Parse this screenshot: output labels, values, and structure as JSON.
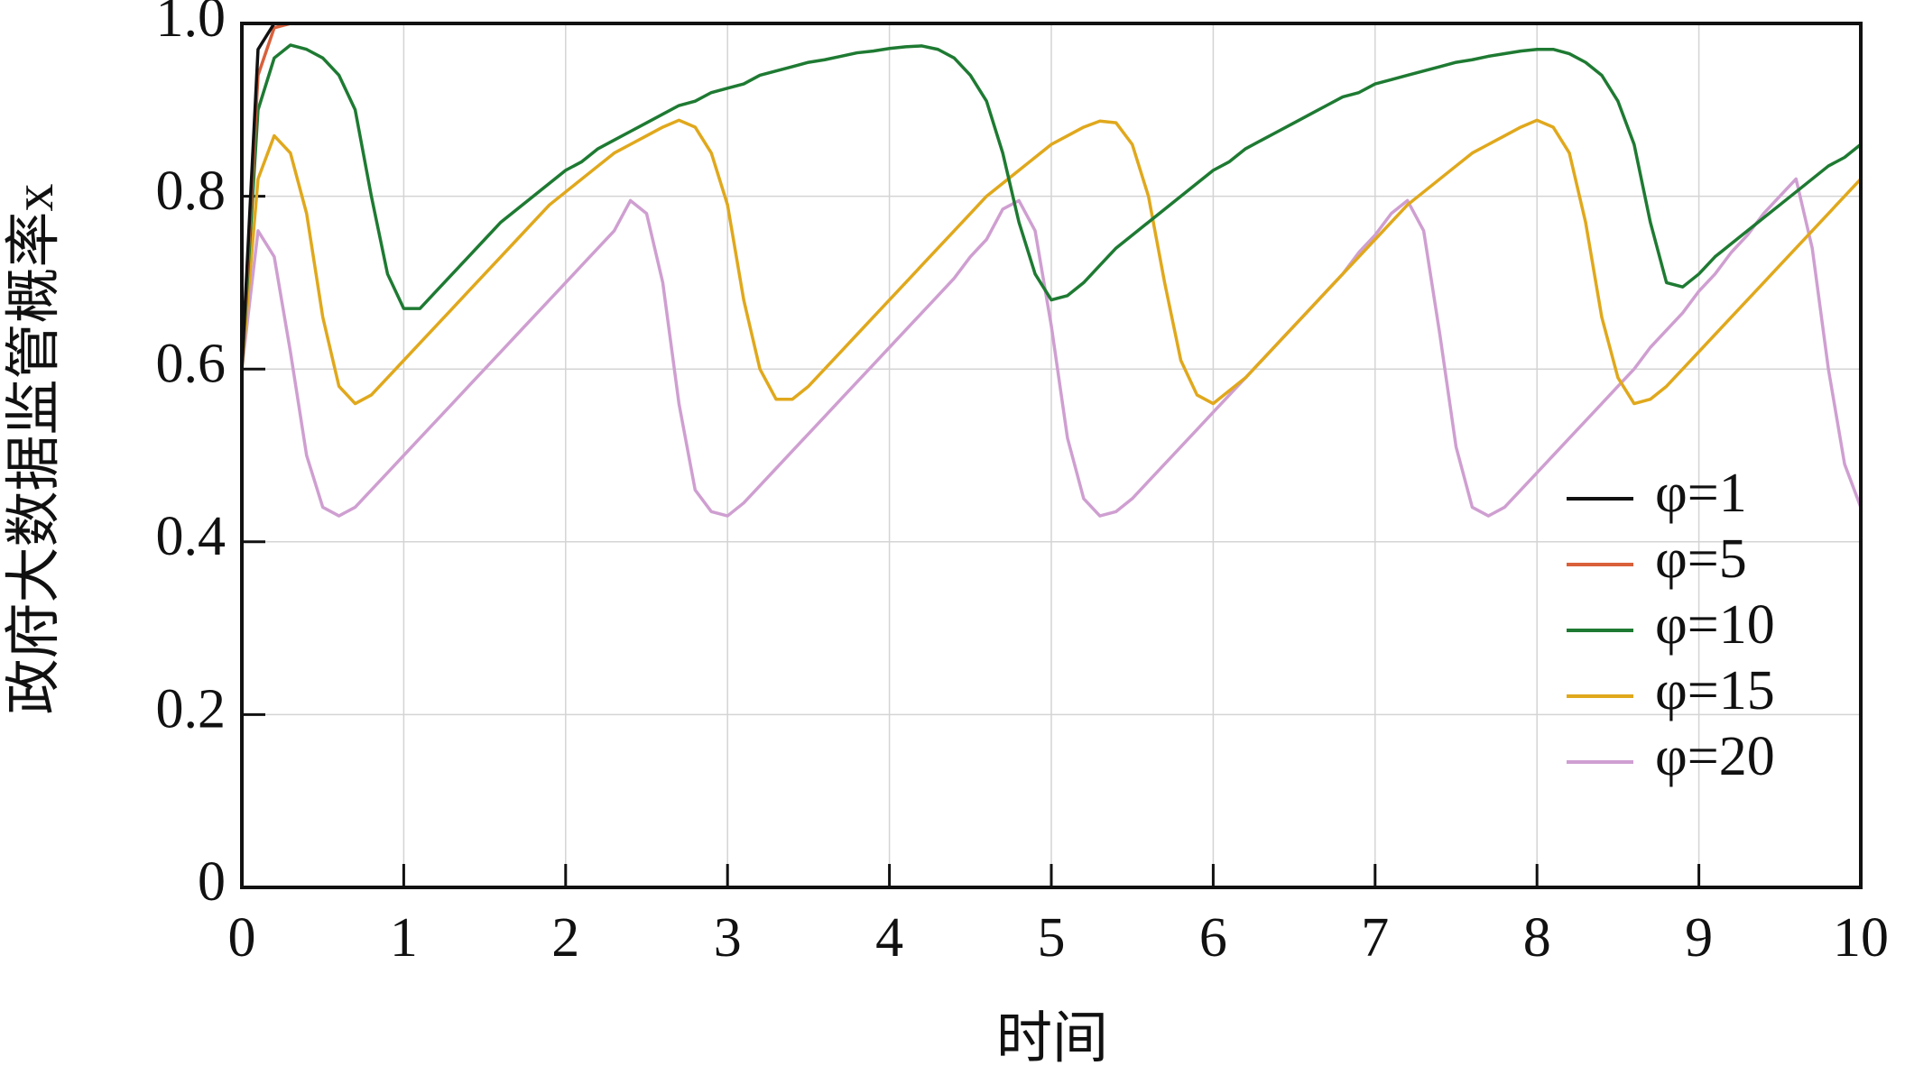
{
  "chart_data": {
    "type": "line",
    "xlabel": "时间",
    "ylabel": "政府大数据监管概率x",
    "x": [
      0,
      0.1,
      0.2,
      0.3,
      0.4,
      0.5,
      0.6,
      0.7,
      0.8,
      0.9,
      1,
      1.1,
      1.2,
      1.3,
      1.4,
      1.5,
      1.6,
      1.7,
      1.8,
      1.9,
      2,
      2.1,
      2.2,
      2.3,
      2.4,
      2.5,
      2.6,
      2.7,
      2.8,
      2.9,
      3,
      3.1,
      3.2,
      3.3,
      3.4,
      3.5,
      3.6,
      3.7,
      3.8,
      3.9,
      4,
      4.1,
      4.2,
      4.3,
      4.4,
      4.5,
      4.6,
      4.7,
      4.8,
      4.9,
      5,
      5.1,
      5.2,
      5.3,
      5.4,
      5.5,
      5.6,
      5.7,
      5.8,
      5.9,
      6,
      6.1,
      6.2,
      6.3,
      6.4,
      6.5,
      6.6,
      6.7,
      6.8,
      6.9,
      7,
      7.1,
      7.2,
      7.3,
      7.4,
      7.5,
      7.6,
      7.7,
      7.8,
      7.9,
      8,
      8.1,
      8.2,
      8.3,
      8.4,
      8.5,
      8.6,
      8.7,
      8.8,
      8.9,
      9,
      9.1,
      9.2,
      9.3,
      9.4,
      9.5,
      9.6,
      9.7,
      9.8,
      9.9,
      10
    ],
    "series": [
      {
        "name": "φ=1",
        "color": "#111111",
        "values": [
          0.6,
          0.97,
          1,
          1,
          1,
          1,
          1,
          1,
          1,
          1,
          1,
          1,
          1,
          1,
          1,
          1,
          1,
          1,
          1,
          1,
          1,
          1,
          1,
          1,
          1,
          1,
          1,
          1,
          1,
          1,
          1,
          1,
          1,
          1,
          1,
          1,
          1,
          1,
          1,
          1,
          1,
          1,
          1,
          1,
          1,
          1,
          1,
          1,
          1,
          1,
          1,
          1,
          1,
          1,
          1,
          1,
          1,
          1,
          1,
          1,
          1,
          1,
          1,
          1,
          1,
          1,
          1,
          1,
          1,
          1,
          1,
          1,
          1,
          1,
          1,
          1,
          1,
          1,
          1,
          1,
          1,
          1,
          1,
          1,
          1,
          1,
          1,
          1,
          1,
          1,
          1,
          1,
          1,
          1,
          1,
          1,
          1,
          1,
          1,
          1,
          1
        ]
      },
      {
        "name": "φ=5",
        "color": "#d9603b",
        "values": [
          0.6,
          0.94,
          0.995,
          1,
          1,
          1,
          1,
          1,
          1,
          1,
          1,
          1,
          1,
          1,
          1,
          1,
          1,
          1,
          1,
          1,
          1,
          1,
          1,
          1,
          1,
          1,
          1,
          1,
          1,
          1,
          1,
          1,
          1,
          1,
          1,
          1,
          1,
          1,
          1,
          1,
          1,
          1,
          1,
          1,
          1,
          1,
          1,
          1,
          1,
          1,
          1,
          1,
          1,
          1,
          1,
          1,
          1,
          1,
          1,
          1,
          1,
          1,
          1,
          1,
          1,
          1,
          1,
          1,
          1,
          1,
          1,
          1,
          1,
          1,
          1,
          1,
          1,
          1,
          1,
          1,
          1,
          1,
          1,
          1,
          1,
          1,
          1,
          1,
          1,
          1,
          1,
          1,
          1,
          1,
          1,
          1,
          1,
          1,
          1,
          1,
          1
        ]
      },
      {
        "name": "φ=10",
        "color": "#1e7a32",
        "values": [
          0.6,
          0.9,
          0.96,
          0.975,
          0.97,
          0.96,
          0.94,
          0.9,
          0.8,
          0.71,
          0.67,
          0.67,
          0.69,
          0.71,
          0.73,
          0.75,
          0.77,
          0.785,
          0.8,
          0.815,
          0.83,
          0.84,
          0.855,
          0.865,
          0.875,
          0.885,
          0.895,
          0.905,
          0.91,
          0.92,
          0.925,
          0.93,
          0.94,
          0.945,
          0.95,
          0.955,
          0.958,
          0.962,
          0.966,
          0.968,
          0.971,
          0.973,
          0.974,
          0.97,
          0.96,
          0.94,
          0.91,
          0.85,
          0.77,
          0.71,
          0.68,
          0.685,
          0.7,
          0.72,
          0.74,
          0.755,
          0.77,
          0.785,
          0.8,
          0.815,
          0.83,
          0.84,
          0.855,
          0.865,
          0.875,
          0.885,
          0.895,
          0.905,
          0.915,
          0.92,
          0.93,
          0.935,
          0.94,
          0.945,
          0.95,
          0.955,
          0.958,
          0.962,
          0.965,
          0.968,
          0.97,
          0.97,
          0.965,
          0.955,
          0.94,
          0.91,
          0.86,
          0.77,
          0.7,
          0.695,
          0.71,
          0.73,
          0.745,
          0.76,
          0.775,
          0.79,
          0.805,
          0.82,
          0.835,
          0.845,
          0.86
        ]
      },
      {
        "name": "φ=15",
        "color": "#e0a81c",
        "values": [
          0.6,
          0.82,
          0.87,
          0.85,
          0.78,
          0.66,
          0.58,
          0.56,
          0.57,
          0.59,
          0.61,
          0.63,
          0.65,
          0.67,
          0.69,
          0.71,
          0.73,
          0.75,
          0.77,
          0.79,
          0.805,
          0.82,
          0.835,
          0.85,
          0.86,
          0.87,
          0.88,
          0.888,
          0.88,
          0.85,
          0.79,
          0.68,
          0.6,
          0.565,
          0.565,
          0.58,
          0.6,
          0.62,
          0.64,
          0.66,
          0.68,
          0.7,
          0.72,
          0.74,
          0.76,
          0.78,
          0.8,
          0.815,
          0.83,
          0.845,
          0.86,
          0.87,
          0.88,
          0.887,
          0.885,
          0.86,
          0.8,
          0.7,
          0.61,
          0.57,
          0.56,
          0.575,
          0.59,
          0.61,
          0.63,
          0.65,
          0.67,
          0.69,
          0.71,
          0.73,
          0.75,
          0.77,
          0.79,
          0.805,
          0.82,
          0.835,
          0.85,
          0.86,
          0.87,
          0.88,
          0.888,
          0.88,
          0.85,
          0.77,
          0.66,
          0.59,
          0.56,
          0.565,
          0.58,
          0.6,
          0.62,
          0.64,
          0.66,
          0.68,
          0.7,
          0.72,
          0.74,
          0.76,
          0.78,
          0.8,
          0.82
        ]
      },
      {
        "name": "φ=20",
        "color": "#cf9fd1",
        "values": [
          0.6,
          0.76,
          0.73,
          0.62,
          0.5,
          0.44,
          0.43,
          0.44,
          0.46,
          0.48,
          0.5,
          0.52,
          0.54,
          0.56,
          0.58,
          0.6,
          0.62,
          0.64,
          0.66,
          0.68,
          0.7,
          0.72,
          0.74,
          0.76,
          0.795,
          0.78,
          0.7,
          0.56,
          0.46,
          0.435,
          0.43,
          0.445,
          0.465,
          0.485,
          0.505,
          0.525,
          0.545,
          0.565,
          0.585,
          0.605,
          0.625,
          0.645,
          0.665,
          0.685,
          0.705,
          0.73,
          0.75,
          0.785,
          0.795,
          0.76,
          0.65,
          0.52,
          0.45,
          0.43,
          0.435,
          0.45,
          0.47,
          0.49,
          0.51,
          0.53,
          0.55,
          0.57,
          0.59,
          0.61,
          0.63,
          0.65,
          0.67,
          0.69,
          0.71,
          0.735,
          0.755,
          0.78,
          0.795,
          0.76,
          0.64,
          0.51,
          0.44,
          0.43,
          0.44,
          0.46,
          0.48,
          0.5,
          0.52,
          0.54,
          0.56,
          0.58,
          0.6,
          0.625,
          0.645,
          0.665,
          0.69,
          0.71,
          0.735,
          0.755,
          0.78,
          0.8,
          0.82,
          0.74,
          0.6,
          0.49,
          0.44
        ]
      }
    ],
    "xlim": [
      0,
      10
    ],
    "xticks": [
      0,
      1,
      2,
      3,
      4,
      5,
      6,
      7,
      8,
      9,
      10
    ],
    "ylim": [
      0,
      1
    ],
    "yticks": [
      0,
      0.2,
      0.4,
      0.6,
      0.8,
      {
        "value": 1,
        "label": "1.0"
      }
    ],
    "grid": true,
    "legend": "lower right"
  }
}
